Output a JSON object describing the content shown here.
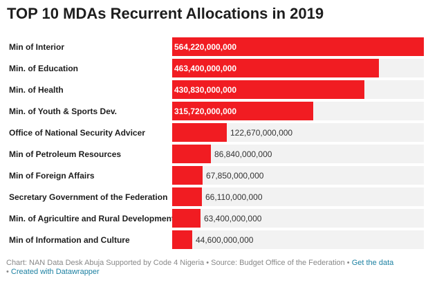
{
  "title": "TOP 10 MDAs Recurrent Allocations in 2019",
  "footer": {
    "prefix": "Chart: NAN Data Desk Abuja Supported by Code 4 Nigeria • Source: Budget Office of the Federation • ",
    "get_data_link": "Get the data",
    "separator": "• ",
    "created_with_link": "Created with Datawrapper"
  },
  "colors": {
    "bar": "#f11c22",
    "track": "#f2f2f2"
  },
  "chart_data": {
    "type": "bar",
    "orientation": "horizontal",
    "title": "TOP 10 MDAs Recurrent Allocations in 2019",
    "xlim": [
      0,
      564220000000
    ],
    "categories": [
      "Min of Interior",
      "Min. of Education",
      "Min. of Health",
      "Min. of Youth & Sports Dev.",
      "Office of National Security Advicer",
      "Min of Petroleum Resources",
      "Min of Foreign Affairs",
      "Secretary Government of the Federation",
      "Min. of Agricultire and Rural Development",
      "Min of Information and Culture"
    ],
    "values": [
      564220000000,
      463400000000,
      430830000000,
      315720000000,
      122670000000,
      86840000000,
      67850000000,
      66110000000,
      63400000000,
      44600000000
    ],
    "value_labels": [
      "564,220,000,000",
      "463,400,000,000",
      "430,830,000,000",
      "315,720,000,000",
      "122,670,000,000",
      "86,840,000,000",
      "67,850,000,000",
      "66,110,000,000",
      "63,400,000,000",
      "44,600,000,000"
    ]
  }
}
